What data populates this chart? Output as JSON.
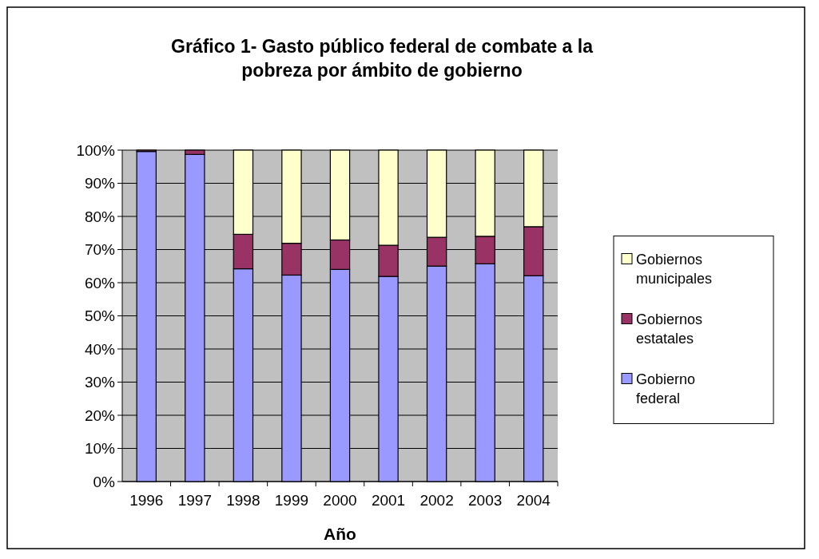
{
  "chart_data": {
    "type": "bar",
    "title": "Gráfico 1- Gasto público federal de combate a la pobreza por ámbito de gobierno",
    "xlabel": "Año",
    "categories": [
      "1996",
      "1997",
      "1998",
      "1999",
      "2000",
      "2001",
      "2002",
      "2003",
      "2004"
    ],
    "stacked": true,
    "series": [
      {
        "name": "Gobierno federal",
        "color": "#9999ff",
        "values": [
          99.6,
          98.7,
          64.2,
          62.3,
          64.0,
          61.9,
          65.0,
          65.7,
          62.1
        ]
      },
      {
        "name": "Gobiernos estatales",
        "color": "#993366",
        "values": [
          0.4,
          1.3,
          10.4,
          9.6,
          8.9,
          9.4,
          8.7,
          8.3,
          14.8
        ]
      },
      {
        "name": "Gobiernos municipales",
        "color": "#ffffcc",
        "values": [
          0,
          0,
          25.4,
          28.1,
          27.1,
          28.7,
          26.3,
          26.0,
          23.1
        ]
      }
    ],
    "ylim": [
      0,
      100
    ],
    "yticks": [
      {
        "value": 0,
        "label": "0%"
      },
      {
        "value": 10,
        "label": "10%"
      },
      {
        "value": 20,
        "label": "20%"
      },
      {
        "value": 30,
        "label": "30%"
      },
      {
        "value": 40,
        "label": "40%"
      },
      {
        "value": 50,
        "label": "50%"
      },
      {
        "value": 60,
        "label": "60%"
      },
      {
        "value": 70,
        "label": "70%"
      },
      {
        "value": 80,
        "label": "80%"
      },
      {
        "value": 90,
        "label": "90%"
      },
      {
        "value": 100,
        "label": "100%"
      }
    ],
    "grid": "y",
    "legend": "right"
  }
}
